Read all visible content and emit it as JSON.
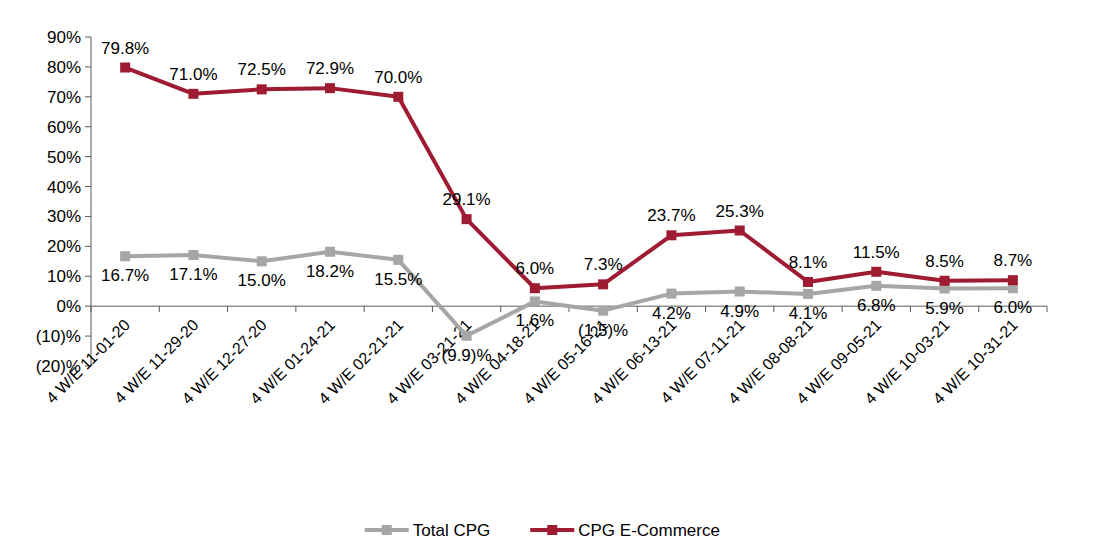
{
  "chart_data": {
    "type": "line",
    "categories": [
      "4 W/E 11-01-20",
      "4 W/E 11-29-20",
      "4 W/E 12-27-20",
      "4 W/E 01-24-21",
      "4 W/E 02-21-21",
      "4 W/E 03-21-21",
      "4 W/E 04-18-21",
      "4 W/E 05-16-21",
      "4 W/E 06-13-21",
      "4 W/E 07-11-21",
      "4 W/E 08-08-21",
      "4 W/E 09-05-21",
      "4 W/E 10-03-21",
      "4 W/E 10-31-21"
    ],
    "series": [
      {
        "name": "Total CPG",
        "color": "#a6a6a6",
        "marker": "square",
        "values": [
          16.7,
          17.1,
          15.0,
          18.2,
          15.5,
          -9.9,
          1.6,
          -1.5,
          4.2,
          4.9,
          4.1,
          6.8,
          5.9,
          6.0
        ],
        "value_labels": [
          "16.7%",
          "17.1%",
          "15.0%",
          "18.2%",
          "15.5%",
          "(9.9)%",
          "1.6%",
          "(1.5)%",
          "4.2%",
          "4.9%",
          "4.1%",
          "6.8%",
          "5.9%",
          "6.0%"
        ]
      },
      {
        "name": "CPG E-Commerce",
        "color": "#9e1b32",
        "marker": "square",
        "values": [
          79.8,
          71.0,
          72.5,
          72.9,
          70.0,
          29.1,
          6.0,
          7.3,
          23.7,
          25.3,
          8.1,
          11.5,
          8.5,
          8.7
        ],
        "value_labels": [
          "79.8%",
          "71.0%",
          "72.5%",
          "72.9%",
          "70.0%",
          "29.1%",
          "6.0%",
          "7.3%",
          "23.7%",
          "25.3%",
          "8.1%",
          "11.5%",
          "8.5%",
          "8.7%"
        ]
      }
    ],
    "ylim": [
      -20,
      90
    ],
    "yticks": [
      {
        "value": -20,
        "label": "(20)%"
      },
      {
        "value": -10,
        "label": "(10)%"
      },
      {
        "value": 0,
        "label": "0%"
      },
      {
        "value": 10,
        "label": "10%"
      },
      {
        "value": 20,
        "label": "20%"
      },
      {
        "value": 30,
        "label": "30%"
      },
      {
        "value": 40,
        "label": "40%"
      },
      {
        "value": 50,
        "label": "50%"
      },
      {
        "value": 60,
        "label": "60%"
      },
      {
        "value": 70,
        "label": "70%"
      },
      {
        "value": 80,
        "label": "80%"
      },
      {
        "value": 90,
        "label": "90%"
      }
    ],
    "grid": false,
    "legend": "bottom",
    "data_labels": true
  }
}
